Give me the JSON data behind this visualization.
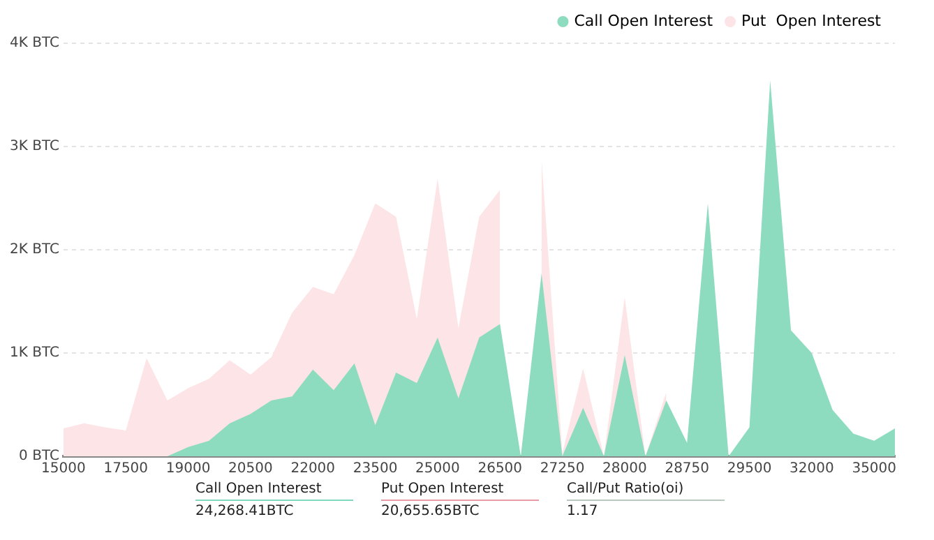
{
  "chart_data": {
    "type": "area",
    "categories": [
      "15000",
      null,
      null,
      "17500",
      null,
      null,
      "19000",
      null,
      null,
      "20500",
      null,
      null,
      "22000",
      null,
      null,
      "23500",
      null,
      null,
      "25000",
      null,
      null,
      "26500",
      null,
      null,
      "27250",
      null,
      null,
      "28000",
      null,
      null,
      "28750",
      null,
      null,
      "29500",
      null,
      null,
      "32000",
      null,
      null,
      "35000",
      null
    ],
    "series": [
      {
        "name": "Call Open Interest",
        "color": "#8edcc0",
        "values": [
          0,
          0,
          0,
          0,
          0,
          0,
          90,
          150,
          320,
          410,
          540,
          580,
          840,
          640,
          900,
          300,
          810,
          710,
          1150,
          560,
          1150,
          1280,
          0,
          1770,
          0,
          470,
          0,
          980,
          0,
          540,
          130,
          2450,
          0,
          280,
          3640,
          1220,
          1000,
          450,
          220,
          150,
          270
        ]
      },
      {
        "name": "Put  Open Interest",
        "color": "#fde4e6",
        "values": [
          270,
          320,
          280,
          250,
          950,
          540,
          660,
          750,
          930,
          790,
          960,
          1390,
          1640,
          1570,
          1950,
          2450,
          2320,
          1330,
          2690,
          1240,
          2320,
          2580,
          null,
          2880,
          30,
          850,
          0,
          1540,
          0,
          620,
          null,
          null,
          null,
          null,
          null,
          null,
          null,
          null,
          null,
          null,
          null
        ]
      }
    ],
    "ylim": [
      0,
      4000
    ],
    "yticks": [
      {
        "value": 0,
        "label": "0 BTC"
      },
      {
        "value": 1000,
        "label": "1K BTC"
      },
      {
        "value": 2000,
        "label": "2K BTC"
      },
      {
        "value": 3000,
        "label": "3K BTC"
      },
      {
        "value": 4000,
        "label": "4K BTC"
      }
    ],
    "grid": "y",
    "legend": "top right",
    "marker": "none",
    "annotations": [
      "Call Open Interest",
      "24,268.41BTC",
      "Put Open Interest",
      "20,655.65BTC",
      "Call/Put Ratio(oi)",
      "1.17"
    ]
  }
}
